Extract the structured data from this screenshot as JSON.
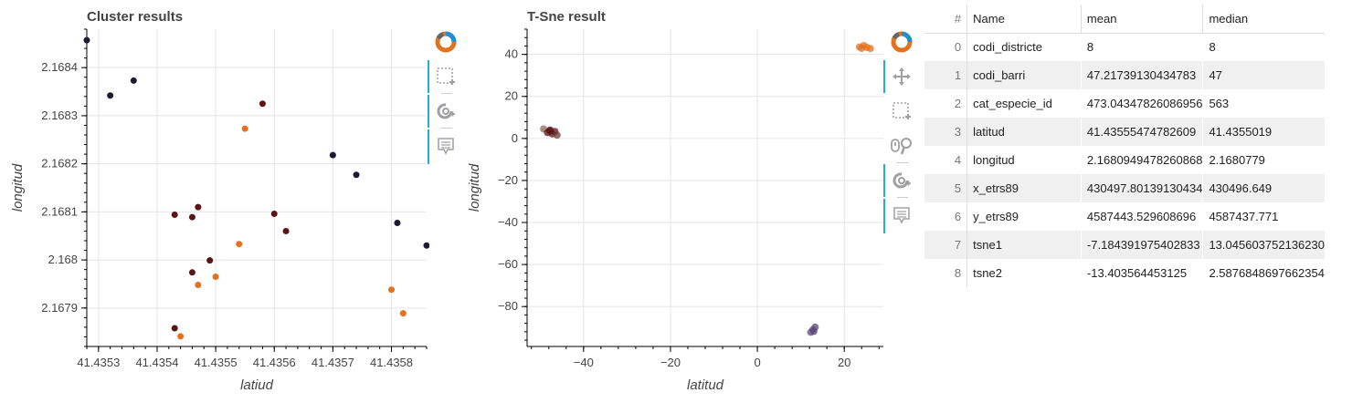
{
  "chart_data": [
    {
      "type": "scatter",
      "title": "Cluster results",
      "xlabel": "latiud",
      "ylabel": "longitud",
      "xlim": [
        41.43528,
        41.43586
      ],
      "ylim": [
        2.16782,
        2.16848
      ],
      "xticks": [
        41.4353,
        41.4354,
        41.4355,
        41.4356,
        41.4357,
        41.4358
      ],
      "xtick_labels": [
        "41.4353",
        "41.4354",
        "41.4355",
        "41.4356",
        "41.4357",
        "41.4358"
      ],
      "yticks": [
        2.1679,
        2.168,
        2.1681,
        2.1682,
        2.1683,
        2.1684
      ],
      "ytick_labels": [
        "2.1679",
        "2.168",
        "2.1681",
        "2.1682",
        "2.1683",
        "2.1684"
      ],
      "grid": true,
      "points": [
        {
          "x": 41.43528,
          "y": 2.168457,
          "color": "#1f1a33"
        },
        {
          "x": 41.43532,
          "y": 2.168342,
          "color": "#1f1a33"
        },
        {
          "x": 41.43536,
          "y": 2.168373,
          "color": "#1f1a33"
        },
        {
          "x": 41.4357,
          "y": 2.168218,
          "color": "#1f1a33"
        },
        {
          "x": 41.43574,
          "y": 2.168177,
          "color": "#1f1a33"
        },
        {
          "x": 41.43581,
          "y": 2.168077,
          "color": "#1f1a33"
        },
        {
          "x": 41.43586,
          "y": 2.16803,
          "color": "#1f1a33"
        },
        {
          "x": 41.43558,
          "y": 2.168325,
          "color": "#5a1416"
        },
        {
          "x": 41.43543,
          "y": 2.168094,
          "color": "#5a1416"
        },
        {
          "x": 41.43546,
          "y": 2.168089,
          "color": "#5a1416"
        },
        {
          "x": 41.43547,
          "y": 2.16811,
          "color": "#5a1416"
        },
        {
          "x": 41.4356,
          "y": 2.168096,
          "color": "#5a1416"
        },
        {
          "x": 41.43562,
          "y": 2.16806,
          "color": "#5a1416"
        },
        {
          "x": 41.43549,
          "y": 2.167999,
          "color": "#5a1416"
        },
        {
          "x": 41.43546,
          "y": 2.167974,
          "color": "#5a1416"
        },
        {
          "x": 41.43543,
          "y": 2.167858,
          "color": "#5a1416"
        },
        {
          "x": 41.43555,
          "y": 2.168273,
          "color": "#e3721e"
        },
        {
          "x": 41.43554,
          "y": 2.168033,
          "color": "#e3721e"
        },
        {
          "x": 41.4355,
          "y": 2.167965,
          "color": "#e3721e"
        },
        {
          "x": 41.43547,
          "y": 2.167948,
          "color": "#e3721e"
        },
        {
          "x": 41.43544,
          "y": 2.167841,
          "color": "#e3721e"
        },
        {
          "x": 41.4358,
          "y": 2.167938,
          "color": "#e3721e"
        },
        {
          "x": 41.43582,
          "y": 2.167889,
          "color": "#e3721e"
        }
      ]
    },
    {
      "type": "scatter",
      "title": "T-Sne result",
      "xlabel": "latitud",
      "ylabel": "longitud",
      "xlim": [
        -53,
        29
      ],
      "ylim": [
        -99,
        52
      ],
      "xticks": [
        -40,
        -20,
        0,
        20
      ],
      "xtick_labels": [
        "−40",
        "−20",
        "0",
        "20"
      ],
      "yticks": [
        40,
        20,
        0,
        -20,
        -40,
        -60,
        -80
      ],
      "ytick_labels": [
        "40",
        "20",
        "0",
        "−20",
        "−40",
        "−60",
        "−80"
      ],
      "grid": true,
      "points": [
        {
          "x": 23.5,
          "y": 43.5,
          "color": "#e3721e"
        },
        {
          "x": 24.5,
          "y": 44.2,
          "color": "#e3721e"
        },
        {
          "x": 25.2,
          "y": 43.3,
          "color": "#e3721e"
        },
        {
          "x": 26.0,
          "y": 42.8,
          "color": "#e3721e"
        },
        {
          "x": 24.0,
          "y": 42.9,
          "color": "#e3721e"
        },
        {
          "x": -49.2,
          "y": 4.5,
          "color": "#8a6a5a"
        },
        {
          "x": -48.3,
          "y": 2.8,
          "color": "#5a1416"
        },
        {
          "x": -47.7,
          "y": 4.0,
          "color": "#5a1416"
        },
        {
          "x": -47.2,
          "y": 2.2,
          "color": "#5a1416"
        },
        {
          "x": -46.6,
          "y": 3.3,
          "color": "#5a1416"
        },
        {
          "x": -46.1,
          "y": 1.6,
          "color": "#6b3f3a"
        },
        {
          "x": -47.8,
          "y": 3.6,
          "color": "#5a1416"
        },
        {
          "x": 12.8,
          "y": -91.0,
          "color": "#5b4a7a"
        },
        {
          "x": 13.3,
          "y": -89.8,
          "color": "#5b4a7a"
        },
        {
          "x": 12.3,
          "y": -92.2,
          "color": "#5b4a7a"
        },
        {
          "x": 13.0,
          "y": -91.8,
          "color": "#5b4a7a"
        }
      ]
    }
  ],
  "table": {
    "headers": [
      "#",
      "Name",
      "mean",
      "median"
    ],
    "rows": [
      [
        "0",
        "codi_districte",
        "8",
        "8"
      ],
      [
        "1",
        "codi_barri",
        "47.21739130434783",
        "47"
      ],
      [
        "2",
        "cat_especie_id",
        "473.04347826086956",
        "563"
      ],
      [
        "3",
        "latitud",
        "41.43555474782609",
        "41.4355019"
      ],
      [
        "4",
        "longitud",
        "2.1680949478260868",
        "2.1680779"
      ],
      [
        "5",
        "x_etrs89",
        "430497.80139130434",
        "430496.649"
      ],
      [
        "6",
        "y_etrs89",
        "4587443.529608696",
        "4587437.771"
      ],
      [
        "7",
        "tsne1",
        "-7.184391975402833",
        "13.045603752136230"
      ],
      [
        "8",
        "tsne2",
        "-13.403564453125",
        "2.5876848697662354"
      ]
    ]
  },
  "colors": {
    "cluster_dark": "#1f1a33",
    "cluster_red": "#5a1416",
    "cluster_orange": "#e3721e",
    "toolbar_active": "#26aae1"
  }
}
